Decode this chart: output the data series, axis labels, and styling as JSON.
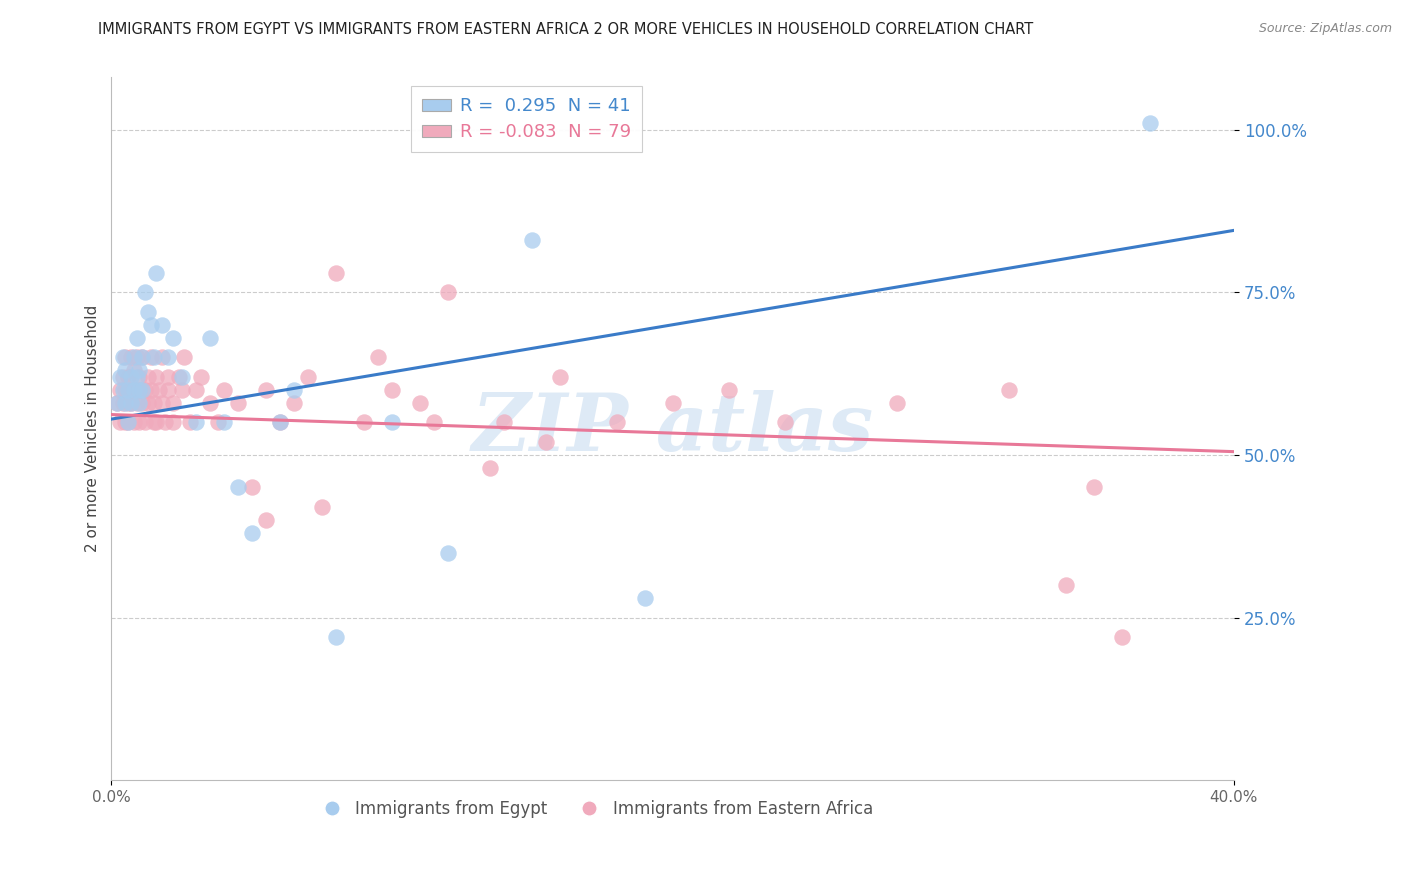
{
  "title": "IMMIGRANTS FROM EGYPT VS IMMIGRANTS FROM EASTERN AFRICA 2 OR MORE VEHICLES IN HOUSEHOLD CORRELATION CHART",
  "source": "Source: ZipAtlas.com",
  "ylabel": "2 or more Vehicles in Household",
  "x_min": 0.0,
  "x_max": 0.4,
  "y_min": 0.0,
  "y_max": 1.08,
  "y_ticks": [
    0.25,
    0.5,
    0.75,
    1.0
  ],
  "y_tick_labels": [
    "25.0%",
    "50.0%",
    "75.0%",
    "100.0%"
  ],
  "x_tick_labels": [
    "0.0%",
    "40.0%"
  ],
  "x_ticks": [
    0.0,
    0.4
  ],
  "legend_labels": [
    "Immigrants from Egypt",
    "Immigrants from Eastern Africa"
  ],
  "color_blue": "#A8CCEE",
  "color_pink": "#F0AABC",
  "color_blue_line": "#3A7BC8",
  "color_pink_line": "#E87898",
  "color_blue_text": "#4488CC",
  "watermark_color": "#C8DCF0",
  "grid_color": "#CCCCCC",
  "background_color": "#FFFFFF",
  "blue_x": [
    0.002,
    0.003,
    0.004,
    0.004,
    0.005,
    0.005,
    0.006,
    0.006,
    0.007,
    0.007,
    0.008,
    0.008,
    0.009,
    0.009,
    0.01,
    0.01,
    0.01,
    0.011,
    0.011,
    0.012,
    0.013,
    0.014,
    0.015,
    0.016,
    0.018,
    0.02,
    0.022,
    0.025,
    0.03,
    0.035,
    0.04,
    0.05,
    0.065,
    0.08,
    0.1,
    0.12,
    0.15,
    0.19,
    0.06,
    0.045,
    0.37
  ],
  "blue_y": [
    0.58,
    0.62,
    0.6,
    0.65,
    0.58,
    0.63,
    0.6,
    0.55,
    0.58,
    0.62,
    0.65,
    0.6,
    0.62,
    0.68,
    0.6,
    0.63,
    0.58,
    0.65,
    0.6,
    0.75,
    0.72,
    0.7,
    0.65,
    0.78,
    0.7,
    0.65,
    0.68,
    0.62,
    0.55,
    0.68,
    0.55,
    0.38,
    0.6,
    0.22,
    0.55,
    0.35,
    0.83,
    0.28,
    0.55,
    0.45,
    1.01
  ],
  "pink_x": [
    0.002,
    0.003,
    0.003,
    0.004,
    0.004,
    0.005,
    0.005,
    0.005,
    0.006,
    0.006,
    0.006,
    0.007,
    0.007,
    0.007,
    0.008,
    0.008,
    0.008,
    0.009,
    0.009,
    0.01,
    0.01,
    0.01,
    0.011,
    0.011,
    0.012,
    0.012,
    0.013,
    0.013,
    0.014,
    0.014,
    0.015,
    0.015,
    0.016,
    0.016,
    0.017,
    0.018,
    0.018,
    0.019,
    0.02,
    0.02,
    0.022,
    0.022,
    0.024,
    0.025,
    0.026,
    0.028,
    0.03,
    0.032,
    0.035,
    0.038,
    0.04,
    0.045,
    0.05,
    0.055,
    0.06,
    0.065,
    0.07,
    0.08,
    0.09,
    0.1,
    0.11,
    0.12,
    0.14,
    0.16,
    0.18,
    0.2,
    0.22,
    0.24,
    0.28,
    0.32,
    0.055,
    0.075,
    0.095,
    0.115,
    0.135,
    0.155,
    0.34,
    0.35,
    0.36
  ],
  "pink_y": [
    0.58,
    0.55,
    0.6,
    0.58,
    0.62,
    0.55,
    0.6,
    0.65,
    0.58,
    0.55,
    0.62,
    0.58,
    0.6,
    0.65,
    0.55,
    0.6,
    0.63,
    0.58,
    0.65,
    0.6,
    0.55,
    0.62,
    0.65,
    0.58,
    0.6,
    0.55,
    0.62,
    0.58,
    0.65,
    0.6,
    0.55,
    0.58,
    0.62,
    0.55,
    0.6,
    0.58,
    0.65,
    0.55,
    0.6,
    0.62,
    0.55,
    0.58,
    0.62,
    0.6,
    0.65,
    0.55,
    0.6,
    0.62,
    0.58,
    0.55,
    0.6,
    0.58,
    0.45,
    0.6,
    0.55,
    0.58,
    0.62,
    0.78,
    0.55,
    0.6,
    0.58,
    0.75,
    0.55,
    0.62,
    0.55,
    0.58,
    0.6,
    0.55,
    0.58,
    0.6,
    0.4,
    0.42,
    0.65,
    0.55,
    0.48,
    0.52,
    0.3,
    0.45,
    0.22
  ],
  "blue_line_x0": 0.0,
  "blue_line_y0": 0.555,
  "blue_line_x1": 0.4,
  "blue_line_y1": 0.845,
  "pink_line_x0": 0.0,
  "pink_line_y0": 0.562,
  "pink_line_x1": 0.4,
  "pink_line_y1": 0.505
}
